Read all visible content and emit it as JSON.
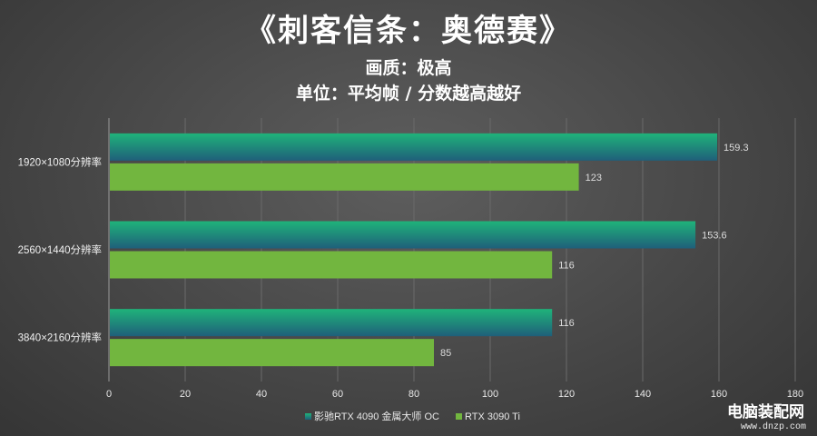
{
  "chart_data": {
    "type": "bar",
    "orientation": "horizontal",
    "title": "《刺客信条：奥德赛》",
    "subtitle": "画质：极高",
    "unit_label": "单位：平均帧 / 分数越高越好",
    "categories": [
      "1920×1080分辨率",
      "2560×1440分辨率",
      "3840×2160分辨率"
    ],
    "series": [
      {
        "name": "影驰RTX 4090 金属大师 OC",
        "values": [
          159.3,
          153.6,
          116
        ],
        "color": "#1fb37a",
        "color_dark": "#1f5f7a"
      },
      {
        "name": "RTX 3090 Ti",
        "values": [
          123,
          116,
          85
        ],
        "color": "#72b63f"
      }
    ],
    "xlim": [
      0,
      180
    ],
    "xticks": [
      0,
      20,
      40,
      60,
      80,
      100,
      120,
      140,
      160,
      180
    ],
    "grid": true,
    "legend_position": "bottom"
  },
  "watermark": {
    "name": "电脑装配网",
    "url": "www.dnzp.com"
  }
}
